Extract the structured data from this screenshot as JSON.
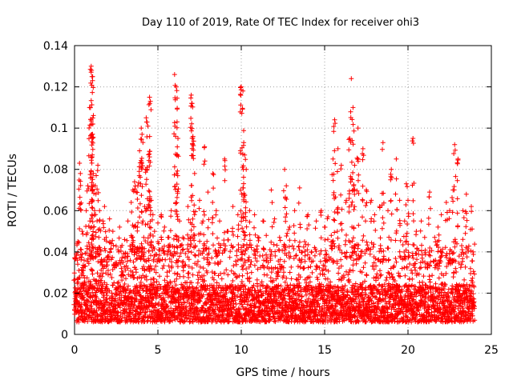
{
  "chart_data": {
    "type": "scatter",
    "title": "Day 110 of 2019, Rate Of TEC Index for receiver ohi3",
    "xlabel": "GPS time / hours",
    "ylabel": "ROTI / TECUs",
    "xlim": [
      0,
      25
    ],
    "ylim": [
      0,
      0.14
    ],
    "xticks": [
      0,
      5,
      10,
      15,
      20,
      25
    ],
    "xtick_labels": [
      "0",
      "5",
      "10",
      "15",
      "20",
      "25"
    ],
    "yticks": [
      0,
      0.02,
      0.04,
      0.06,
      0.08,
      0.1,
      0.12,
      0.14
    ],
    "ytick_labels": [
      "0",
      "0.02",
      "0.04",
      "0.06",
      "0.08",
      "0.1",
      "0.12",
      "0.14"
    ],
    "grid": true,
    "marker": "+",
    "series": [
      {
        "name": "ROTI",
        "color": "#ff0000",
        "x": [
          0.0,
          0.1,
          0.15,
          0.2,
          0.3,
          0.35,
          0.4,
          0.45,
          0.5,
          0.6,
          0.7,
          0.8,
          0.9,
          1.0,
          1.02,
          1.05,
          1.08,
          1.1,
          1.15,
          1.2,
          1.3,
          1.4,
          1.5,
          1.55,
          1.6,
          1.65,
          1.7,
          1.8,
          1.9,
          2.0,
          2.1,
          2.2,
          2.3,
          2.5,
          2.7,
          2.9,
          3.0,
          3.2,
          3.4,
          3.5,
          3.6,
          3.7,
          3.8,
          3.9,
          4.0,
          4.05,
          4.1,
          4.2,
          4.3,
          4.4,
          4.5,
          4.55,
          4.6,
          4.7,
          4.8,
          5.0,
          5.2,
          5.4,
          5.6,
          5.8,
          6.0,
          6.1,
          6.15,
          6.2,
          6.3,
          6.5,
          6.8,
          7.0,
          7.05,
          7.1,
          7.2,
          7.5,
          7.7,
          7.8,
          8.0,
          8.3,
          8.5,
          8.7,
          9.0,
          9.2,
          9.5,
          9.8,
          10.0,
          10.1,
          10.15,
          10.2,
          10.3,
          10.5,
          10.8,
          11.0,
          11.3,
          11.5,
          11.8,
          12.0,
          12.3,
          12.6,
          12.7,
          12.9,
          13.2,
          13.5,
          13.8,
          14.0,
          14.2,
          14.5,
          14.8,
          15.0,
          15.2,
          15.4,
          15.5,
          15.6,
          15.8,
          16.0,
          16.3,
          16.5,
          16.6,
          16.7,
          16.8,
          17.0,
          17.3,
          17.5,
          17.8,
          18.0,
          18.3,
          18.5,
          18.8,
          19.0,
          19.3,
          19.5,
          19.8,
          19.9,
          20.0,
          20.3,
          20.5,
          20.8,
          21.0,
          21.3,
          21.6,
          21.8,
          22.0,
          22.3,
          22.5,
          22.7,
          22.8,
          23.0,
          23.3,
          23.5,
          23.8,
          23.9
        ],
        "y": [
          0.012,
          0.039,
          0.015,
          0.045,
          0.083,
          0.078,
          0.02,
          0.05,
          0.031,
          0.025,
          0.06,
          0.072,
          0.11,
          0.13,
          0.128,
          0.125,
          0.123,
          0.102,
          0.052,
          0.06,
          0.077,
          0.082,
          0.06,
          0.041,
          0.035,
          0.028,
          0.055,
          0.062,
          0.047,
          0.038,
          0.056,
          0.044,
          0.05,
          0.033,
          0.052,
          0.029,
          0.046,
          0.055,
          0.064,
          0.07,
          0.074,
          0.069,
          0.072,
          0.089,
          0.1,
          0.097,
          0.055,
          0.062,
          0.105,
          0.101,
          0.115,
          0.113,
          0.065,
          0.058,
          0.05,
          0.054,
          0.058,
          0.052,
          0.047,
          0.06,
          0.126,
          0.12,
          0.103,
          0.095,
          0.055,
          0.047,
          0.062,
          0.116,
          0.112,
          0.096,
          0.078,
          0.065,
          0.055,
          0.091,
          0.069,
          0.078,
          0.06,
          0.055,
          0.085,
          0.05,
          0.062,
          0.058,
          0.12,
          0.118,
          0.093,
          0.087,
          0.08,
          0.06,
          0.058,
          0.047,
          0.055,
          0.048,
          0.07,
          0.056,
          0.047,
          0.08,
          0.072,
          0.052,
          0.06,
          0.071,
          0.045,
          0.058,
          0.04,
          0.055,
          0.06,
          0.052,
          0.057,
          0.048,
          0.085,
          0.104,
          0.09,
          0.082,
          0.065,
          0.095,
          0.124,
          0.11,
          0.082,
          0.1,
          0.09,
          0.07,
          0.065,
          0.058,
          0.062,
          0.093,
          0.06,
          0.08,
          0.085,
          0.065,
          0.055,
          0.073,
          0.065,
          0.095,
          0.05,
          0.055,
          0.047,
          0.069,
          0.047,
          0.052,
          0.058,
          0.064,
          0.06,
          0.07,
          0.092,
          0.085,
          0.06,
          0.068,
          0.062,
          0.04
        ],
        "dense_band": {
          "x_range": [
            0,
            24
          ],
          "y_min": 0.002,
          "y_max": 0.04,
          "note": "continuous dense cloud of points throughout the day"
        }
      }
    ]
  }
}
